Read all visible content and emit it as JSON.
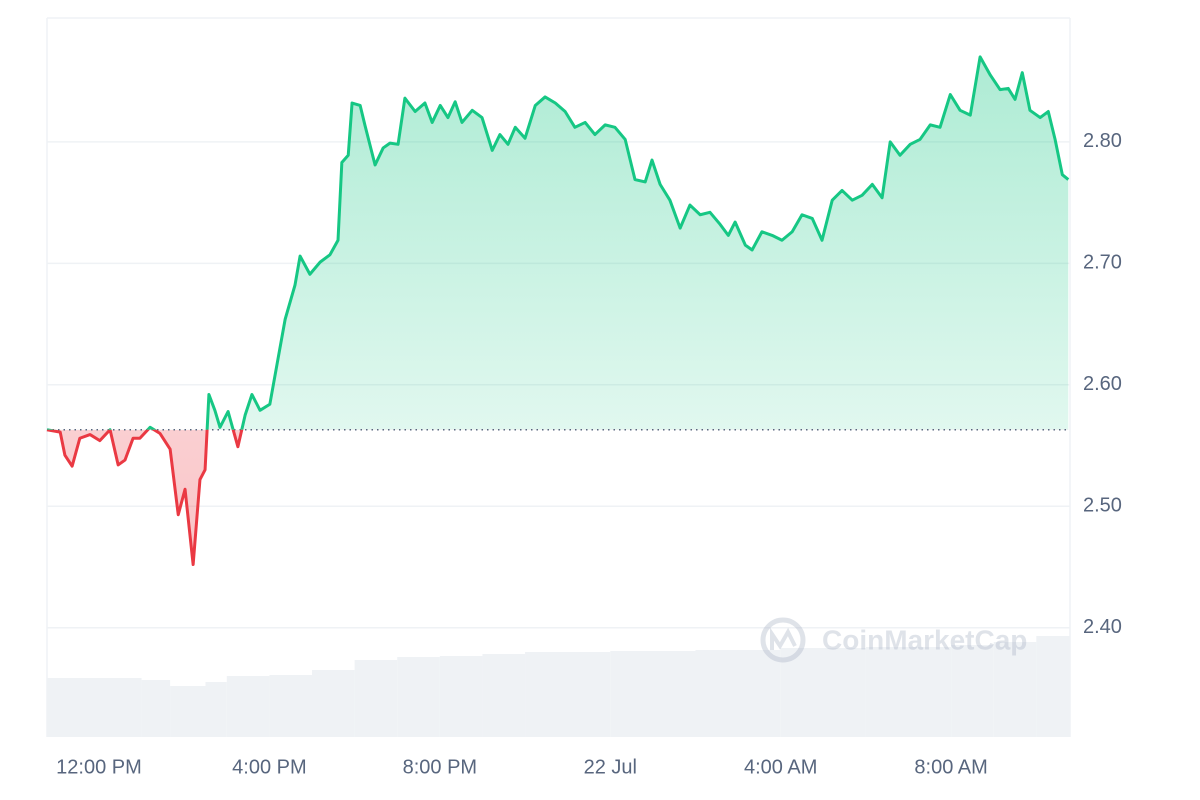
{
  "chart_data": {
    "type": "line",
    "x": [
      10.78,
      11.09,
      11.2,
      11.37,
      11.55,
      11.79,
      12.02,
      12.26,
      12.45,
      12.61,
      12.8,
      12.96,
      13.2,
      13.43,
      13.67,
      13.86,
      14.02,
      14.21,
      14.37,
      14.49,
      14.58,
      14.72,
      14.84,
      15.03,
      15.26,
      15.43,
      15.59,
      15.78,
      16.01,
      16.2,
      16.37,
      16.6,
      16.72,
      16.95,
      17.19,
      17.42,
      17.61,
      17.7,
      17.85,
      17.94,
      18.13,
      18.24,
      18.48,
      18.67,
      18.83,
      19.02,
      19.18,
      19.42,
      19.65,
      19.82,
      20.01,
      20.19,
      20.36,
      20.52,
      20.76,
      20.99,
      21.23,
      21.41,
      21.6,
      21.77,
      22.0,
      22.24,
      22.47,
      22.71,
      22.94,
      23.17,
      23.41,
      23.64,
      23.88,
      24.11,
      24.35,
      24.58,
      24.82,
      24.98,
      25.17,
      25.4,
      25.64,
      25.87,
      26.11,
      26.34,
      26.58,
      26.77,
      26.93,
      27.17,
      27.33,
      27.56,
      27.8,
      28.03,
      28.27,
      28.5,
      28.74,
      28.97,
      29.21,
      29.44,
      29.68,
      29.91,
      30.15,
      30.38,
      30.57,
      30.8,
      31.04,
      31.27,
      31.51,
      31.74,
      31.98,
      32.21,
      32.45,
      32.68,
      32.92,
      33.15,
      33.34,
      33.5,
      33.67,
      33.85,
      34.09,
      34.28,
      34.44,
      34.61,
      34.75
    ],
    "values": [
      2.563,
      2.561,
      2.542,
      2.533,
      2.556,
      2.559,
      2.554,
      2.563,
      2.534,
      2.538,
      2.556,
      2.556,
      2.565,
      2.56,
      2.547,
      2.493,
      2.514,
      2.452,
      2.522,
      2.53,
      2.592,
      2.579,
      2.565,
      2.578,
      2.549,
      2.575,
      2.592,
      2.579,
      2.584,
      2.621,
      2.654,
      2.682,
      2.706,
      2.691,
      2.701,
      2.707,
      2.719,
      2.783,
      2.789,
      2.832,
      2.83,
      2.814,
      2.781,
      2.795,
      2.799,
      2.798,
      2.836,
      2.825,
      2.832,
      2.816,
      2.83,
      2.82,
      2.833,
      2.816,
      2.826,
      2.82,
      2.793,
      2.806,
      2.798,
      2.812,
      2.803,
      2.83,
      2.837,
      2.832,
      2.825,
      2.812,
      2.816,
      2.806,
      2.814,
      2.812,
      2.802,
      2.769,
      2.767,
      2.785,
      2.765,
      2.752,
      2.729,
      2.748,
      2.74,
      2.742,
      2.732,
      2.723,
      2.734,
      2.715,
      2.711,
      2.726,
      2.723,
      2.719,
      2.726,
      2.74,
      2.737,
      2.719,
      2.752,
      2.76,
      2.752,
      2.756,
      2.765,
      2.754,
      2.8,
      2.789,
      2.798,
      2.802,
      2.814,
      2.812,
      2.839,
      2.826,
      2.822,
      2.87,
      2.855,
      2.843,
      2.844,
      2.835,
      2.857,
      2.826,
      2.82,
      2.825,
      2.802,
      2.773,
      2.769
    ],
    "baseline": 2.563,
    "up_color": "#16c784",
    "down_color": "#ea3943",
    "xlim": [
      10.78,
      34.79
    ],
    "ylim": [
      2.31,
      2.902
    ],
    "xticks": [
      {
        "value": 12,
        "label": "12:00 PM"
      },
      {
        "value": 16,
        "label": "4:00 PM"
      },
      {
        "value": 20,
        "label": "8:00 PM"
      },
      {
        "value": 24,
        "label": "22 Jul"
      },
      {
        "value": 28,
        "label": "4:00 AM"
      },
      {
        "value": 32,
        "label": "8:00 AM"
      }
    ],
    "yticks": [
      {
        "value": 2.4,
        "label": "2.40"
      },
      {
        "value": 2.5,
        "label": "2.50"
      },
      {
        "value": 2.6,
        "label": "2.60"
      },
      {
        "value": 2.7,
        "label": "2.70"
      },
      {
        "value": 2.8,
        "label": "2.80"
      }
    ],
    "grid": true,
    "volume": {
      "color": "#eff2f5",
      "x": [
        10.78,
        12,
        13,
        13.67,
        14.5,
        15,
        16,
        17,
        18,
        19,
        20,
        21,
        22,
        24,
        26,
        28,
        30,
        32,
        33,
        34
      ],
      "values": [
        59,
        59,
        57,
        51,
        55,
        61,
        62,
        67,
        77,
        80,
        81,
        83,
        85,
        86,
        87,
        89,
        90,
        92,
        95,
        101
      ]
    },
    "watermark": "CoinMarketCap"
  }
}
